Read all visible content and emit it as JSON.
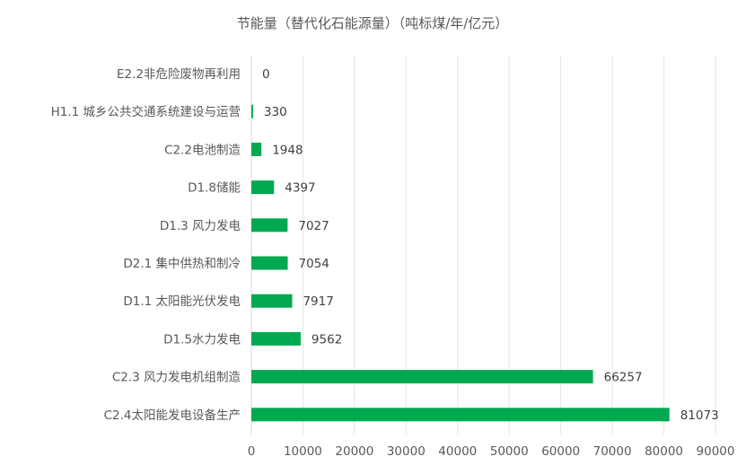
{
  "chart_data": {
    "type": "bar",
    "orientation": "horizontal",
    "title": "节能量（替代化石能源量）（吨标煤/年/亿元）",
    "categories": [
      "E2.2非危险废物再利用",
      "H1.1 城乡公共交通系统建设与运营",
      "C2.2电池制造",
      "D1.8储能",
      "D1.3 风力发电",
      "D2.1 集中供热和制冷",
      "D1.1 太阳能光伏发电",
      "D1.5水力发电",
      "C2.3 风力发电机组制造",
      "C2.4太阳能发电设备生产"
    ],
    "values": [
      0,
      330,
      1948,
      4397,
      7027,
      7054,
      7917,
      9562,
      66257,
      81073
    ],
    "x_ticks": [
      "0",
      "10000",
      "20000",
      "30000",
      "40000",
      "50000",
      "60000",
      "70000",
      "80000",
      "90000"
    ],
    "xlim": [
      0,
      90000
    ],
    "grid": true,
    "legend": false,
    "bar_color": "#00A94F"
  }
}
